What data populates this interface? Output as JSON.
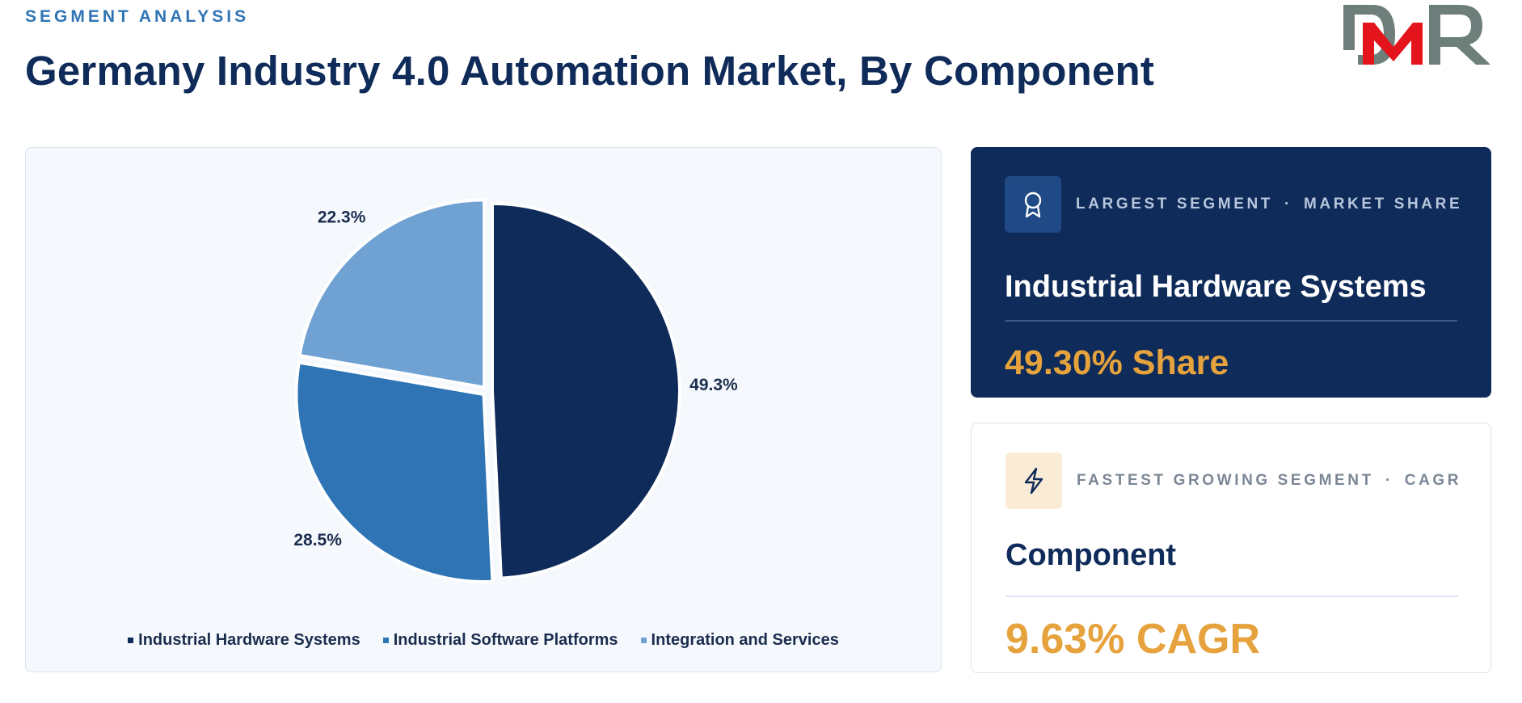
{
  "header": {
    "eyebrow": "SEGMENT ANALYSIS",
    "title": "Germany Industry 4.0 Automation Market, By Component"
  },
  "logo": {
    "text": "DMR",
    "colors": {
      "D": "#6e7f7b",
      "M": "#e3141b",
      "R": "#6e7f7b"
    }
  },
  "chart_data": {
    "type": "pie",
    "categories": [
      "Industrial Hardware Systems",
      "Industrial Software Platforms",
      "Integration and Services"
    ],
    "values": [
      49.3,
      28.5,
      22.3
    ],
    "labels": [
      "49.3%",
      "28.5%",
      "22.3%"
    ],
    "colors": [
      "#0f2b59",
      "#2f74b5",
      "#6fa1d2"
    ],
    "legend_position": "bottom"
  },
  "cards": {
    "largest": {
      "icon": "award-icon",
      "kicker_left": "LARGEST SEGMENT",
      "separator": "·",
      "kicker_right": "MARKET SHARE",
      "segment": "Industrial Hardware Systems",
      "metric": "49.30% Share"
    },
    "fastest": {
      "icon": "lightning-icon",
      "kicker_left": "FASTEST GROWING SEGMENT",
      "separator": "·",
      "kicker_right": "CAGR",
      "segment": "Component",
      "metric": "9.63% CAGR"
    }
  }
}
